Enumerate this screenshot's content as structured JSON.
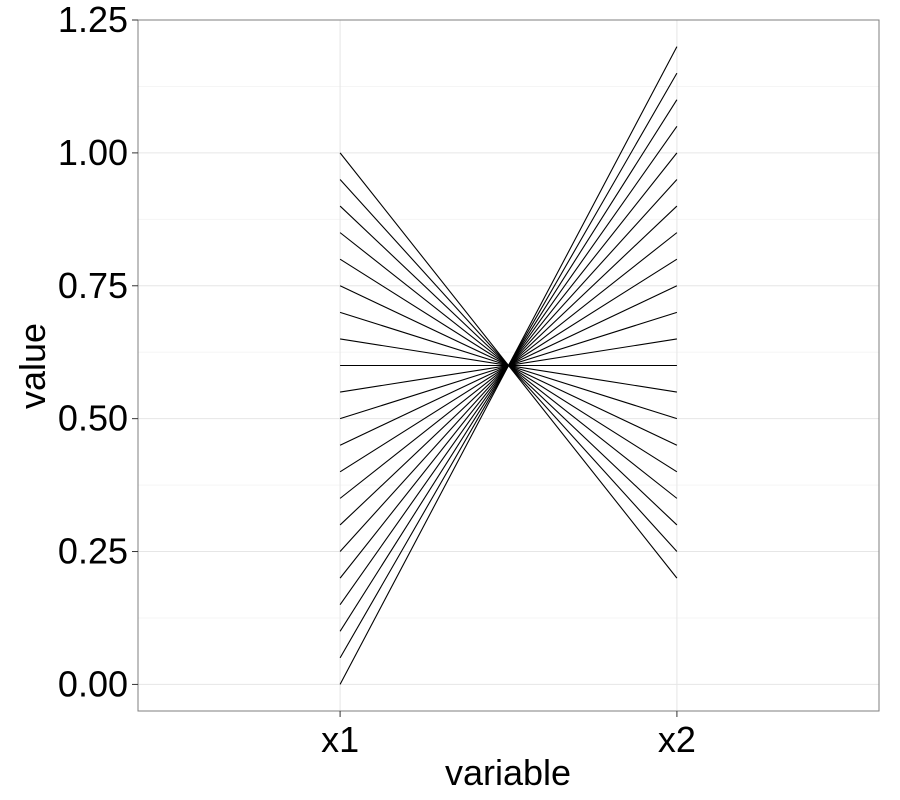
{
  "chart_data": {
    "type": "line",
    "title": "",
    "xlabel": "variable",
    "ylabel": "value",
    "categories": [
      "x1",
      "x2"
    ],
    "ylim": [
      -0.05,
      1.25
    ],
    "yticks": [
      0.0,
      0.25,
      0.5,
      0.75,
      1.0,
      1.25
    ],
    "ytick_labels": [
      "0.00",
      "0.25",
      "0.50",
      "0.75",
      "1.00",
      "1.25"
    ],
    "grid": true,
    "legend": "none",
    "line_color": "#000000",
    "series": [
      {
        "values": [
          0.0,
          1.2
        ]
      },
      {
        "values": [
          0.05,
          1.15
        ]
      },
      {
        "values": [
          0.1,
          1.1
        ]
      },
      {
        "values": [
          0.15,
          1.05
        ]
      },
      {
        "values": [
          0.2,
          1.0
        ]
      },
      {
        "values": [
          0.25,
          0.95
        ]
      },
      {
        "values": [
          0.3,
          0.9
        ]
      },
      {
        "values": [
          0.35,
          0.85
        ]
      },
      {
        "values": [
          0.4,
          0.8
        ]
      },
      {
        "values": [
          0.45,
          0.75
        ]
      },
      {
        "values": [
          0.5,
          0.7
        ]
      },
      {
        "values": [
          0.55,
          0.65
        ]
      },
      {
        "values": [
          0.6,
          0.6
        ]
      },
      {
        "values": [
          0.65,
          0.55
        ]
      },
      {
        "values": [
          0.7,
          0.5
        ]
      },
      {
        "values": [
          0.75,
          0.45
        ]
      },
      {
        "values": [
          0.8,
          0.4
        ]
      },
      {
        "values": [
          0.85,
          0.35
        ]
      },
      {
        "values": [
          0.9,
          0.3
        ]
      },
      {
        "values": [
          0.95,
          0.25
        ]
      },
      {
        "values": [
          1.0,
          0.2
        ]
      }
    ]
  }
}
